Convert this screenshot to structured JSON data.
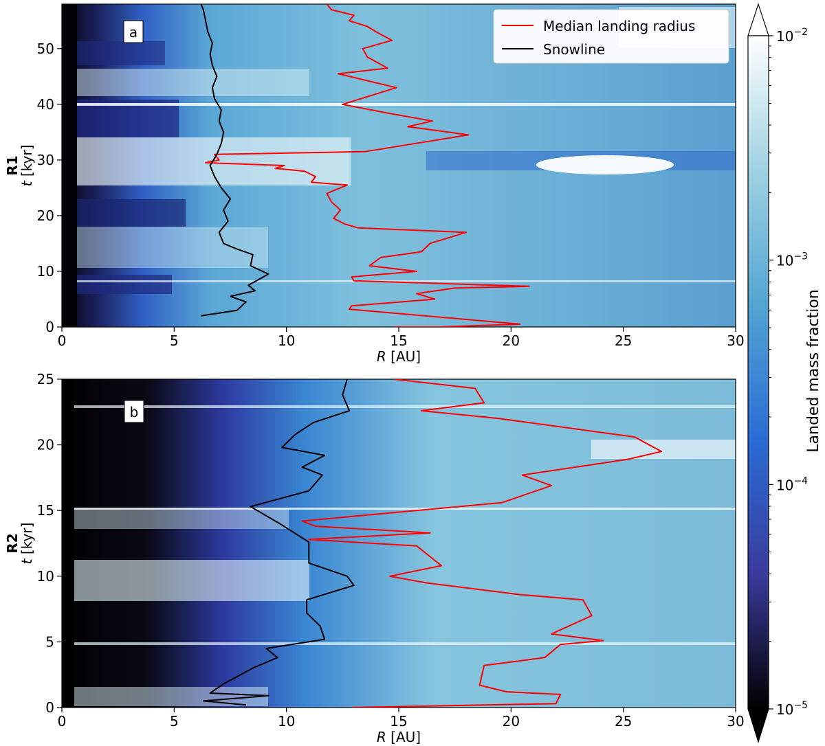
{
  "chart_data": [
    {
      "type": "heatmap",
      "panel_label": "a",
      "row_label": "R1",
      "xlabel_var": "R",
      "xlabel_unit": " [AU]",
      "ylabel_var": "t",
      "ylabel_unit": " [kyr]",
      "xlim": [
        0,
        30
      ],
      "ylim": [
        0,
        58
      ],
      "xticks": [
        0,
        5,
        10,
        15,
        20,
        25,
        30
      ],
      "yticks": [
        0,
        10,
        20,
        30,
        40,
        50
      ],
      "legend": {
        "position": "top-right",
        "entries": [
          {
            "label": "Median landing radius",
            "color": "#ff0000"
          },
          {
            "label": "Snowline",
            "color": "#000000"
          }
        ]
      },
      "series": [
        {
          "name": "Median landing radius",
          "color": "#ff0000",
          "points": [
            [
              14.8,
              0
            ],
            [
              16.8,
              0
            ],
            [
              20.4,
              0.5
            ],
            [
              12.8,
              3.2
            ],
            [
              12.9,
              3.8
            ],
            [
              15.1,
              4.5
            ],
            [
              16.6,
              5
            ],
            [
              15.8,
              6
            ],
            [
              17.5,
              7
            ],
            [
              20.8,
              7.3
            ],
            [
              13.0,
              8.3
            ],
            [
              12.9,
              9
            ],
            [
              15.8,
              10
            ],
            [
              13.7,
              11
            ],
            [
              14.2,
              12.5
            ],
            [
              16.0,
              13.5
            ],
            [
              16.4,
              15
            ],
            [
              18.0,
              17
            ],
            [
              13.2,
              17.8
            ],
            [
              12.6,
              18.5
            ],
            [
              12.1,
              19.5
            ],
            [
              12.4,
              21
            ],
            [
              12.0,
              22.5
            ],
            [
              11.8,
              24
            ],
            [
              12.7,
              25.5
            ],
            [
              11.1,
              26
            ],
            [
              11.3,
              27
            ],
            [
              10.8,
              28
            ],
            [
              9.5,
              28.5
            ],
            [
              9.9,
              29
            ],
            [
              6.4,
              29.5
            ],
            [
              7.0,
              30
            ],
            [
              6.8,
              31
            ],
            [
              13.5,
              31.5
            ],
            [
              18.1,
              34.5
            ],
            [
              15.4,
              36
            ],
            [
              16.5,
              37
            ],
            [
              14.4,
              38.5
            ],
            [
              12.5,
              40
            ],
            [
              13.3,
              41
            ],
            [
              14.9,
              43
            ],
            [
              12.3,
              45.5
            ],
            [
              14.5,
              46.5
            ],
            [
              13.6,
              48.5
            ],
            [
              13.4,
              50
            ],
            [
              14.7,
              51.5
            ],
            [
              14.0,
              53
            ],
            [
              13.6,
              54
            ],
            [
              12.8,
              55
            ],
            [
              13.0,
              56
            ],
            [
              12.0,
              57
            ],
            [
              11.8,
              58
            ]
          ]
        },
        {
          "name": "Snowline",
          "color": "#000000",
          "points": [
            [
              6.2,
              2
            ],
            [
              7.8,
              3
            ],
            [
              8.2,
              4.5
            ],
            [
              7.5,
              5.5
            ],
            [
              8.6,
              6.5
            ],
            [
              8.3,
              7.5
            ],
            [
              9.2,
              9.5
            ],
            [
              8.4,
              11
            ],
            [
              8.5,
              13
            ],
            [
              7.8,
              14
            ],
            [
              7.2,
              15
            ],
            [
              7.0,
              17
            ],
            [
              7.4,
              19
            ],
            [
              7.2,
              21
            ],
            [
              7.5,
              23
            ],
            [
              7.1,
              25
            ],
            [
              6.8,
              27
            ],
            [
              6.6,
              29
            ],
            [
              6.9,
              31
            ],
            [
              7.1,
              33
            ],
            [
              7.2,
              35
            ],
            [
              7.0,
              37
            ],
            [
              7.1,
              39
            ],
            [
              6.8,
              41
            ],
            [
              6.7,
              43
            ],
            [
              6.9,
              45
            ],
            [
              6.7,
              47
            ],
            [
              6.6,
              49
            ],
            [
              6.7,
              51
            ],
            [
              6.5,
              53
            ],
            [
              6.4,
              55
            ],
            [
              6.3,
              57
            ],
            [
              6.2,
              58
            ]
          ]
        }
      ]
    },
    {
      "type": "heatmap",
      "panel_label": "b",
      "row_label": "R2",
      "xlabel_var": "R",
      "xlabel_unit": " [AU]",
      "ylabel_var": "t",
      "ylabel_unit": " [kyr]",
      "xlim": [
        0,
        30
      ],
      "ylim": [
        0,
        25
      ],
      "xticks": [
        0,
        5,
        10,
        15,
        20,
        25,
        30
      ],
      "yticks": [
        0,
        5,
        10,
        15,
        20,
        25
      ],
      "series": [
        {
          "name": "Median landing radius",
          "color": "#ff0000",
          "points": [
            [
              12.9,
              0
            ],
            [
              22.0,
              0.3
            ],
            [
              22.2,
              1
            ],
            [
              19.8,
              1.2
            ],
            [
              18.6,
              1.7
            ],
            [
              18.8,
              3.2
            ],
            [
              21.5,
              3.8
            ],
            [
              22.2,
              4.8
            ],
            [
              24.1,
              5.1
            ],
            [
              21.8,
              5.6
            ],
            [
              23.6,
              7.0
            ],
            [
              23.2,
              8.2
            ],
            [
              20.4,
              8.6
            ],
            [
              16.2,
              9.5
            ],
            [
              14.6,
              10
            ],
            [
              16.9,
              10.8
            ],
            [
              15.8,
              12.3
            ],
            [
              11.0,
              12.8
            ],
            [
              16.4,
              13.3
            ],
            [
              11.3,
              13.8
            ],
            [
              10.7,
              14.2
            ],
            [
              19.6,
              15.6
            ],
            [
              21.8,
              16.9
            ],
            [
              20.5,
              17.7
            ],
            [
              25.2,
              18.9
            ],
            [
              26.7,
              19.5
            ],
            [
              25.5,
              20.6
            ],
            [
              19.5,
              22
            ],
            [
              16.0,
              22.6
            ],
            [
              18.8,
              23.2
            ],
            [
              18.4,
              24.3
            ],
            [
              14.8,
              25
            ]
          ]
        },
        {
          "name": "Snowline",
          "color": "#000000",
          "points": [
            [
              8.2,
              0.2
            ],
            [
              6.3,
              0.5
            ],
            [
              9.2,
              0.9
            ],
            [
              6.6,
              1.1
            ],
            [
              7.2,
              1.8
            ],
            [
              8.5,
              3.0
            ],
            [
              9.6,
              3.8
            ],
            [
              9.1,
              4.5
            ],
            [
              11.7,
              5.2
            ],
            [
              11.5,
              6.2
            ],
            [
              10.9,
              7.2
            ],
            [
              10.9,
              8.2
            ],
            [
              13.0,
              9.3
            ],
            [
              12.7,
              10.0
            ],
            [
              11.0,
              11.0
            ],
            [
              11.0,
              12.6
            ],
            [
              9.7,
              14.0
            ],
            [
              8.4,
              15.3
            ],
            [
              11.0,
              16.5
            ],
            [
              11.6,
              17.7
            ],
            [
              10.7,
              18.3
            ],
            [
              11.7,
              19.2
            ],
            [
              9.8,
              19.8
            ],
            [
              10.4,
              20.8
            ],
            [
              11.2,
              21.7
            ],
            [
              12.8,
              22.6
            ],
            [
              12.5,
              23.8
            ],
            [
              12.7,
              25
            ]
          ]
        }
      ]
    }
  ],
  "colorbar": {
    "label": "Landed mass fraction",
    "scale": "log",
    "min": 1e-05,
    "max": 0.01,
    "ticks": [
      {
        "base": "10",
        "exp": "−2",
        "value": 0.01
      },
      {
        "base": "10",
        "exp": "−3",
        "value": 0.001
      },
      {
        "base": "10",
        "exp": "−4",
        "value": 0.0001
      },
      {
        "base": "10",
        "exp": "−5",
        "value": 1e-05
      }
    ],
    "extend": "both",
    "colors": [
      "#000000",
      "#3a3b9c",
      "#2a6cd4",
      "#52a5d2",
      "#9fd2e2",
      "#ffffff"
    ]
  }
}
